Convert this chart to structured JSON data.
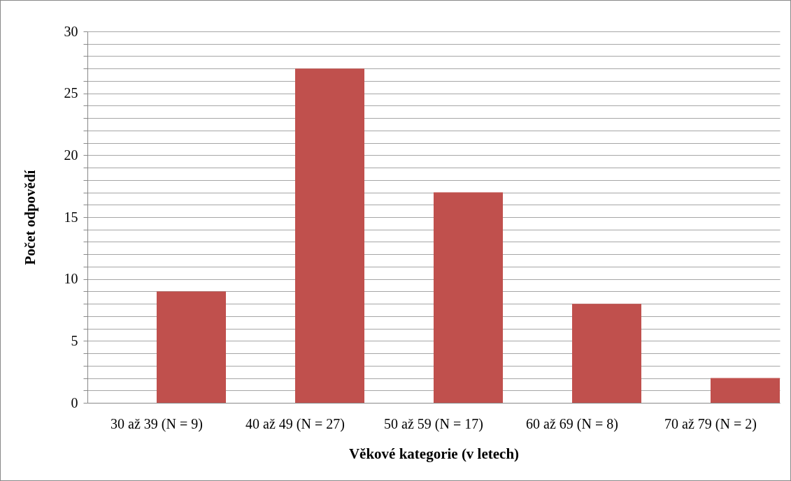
{
  "chart_data": {
    "type": "bar",
    "xlabel": "Věkové kategorie (v letech)",
    "ylabel": "Počet odpovědí",
    "categories": [
      "30 až 39 (N = 9)",
      "40 až 49 (N = 27)",
      "50 až 59 (N = 17)",
      "60 až 69 (N = 8)",
      "70 až 79 (N = 2)"
    ],
    "values": [
      9,
      27,
      17,
      8,
      2
    ],
    "color": "#c0504d",
    "ylim": [
      0,
      30
    ],
    "yticks": [
      0,
      {
        "value": 1,
        "label": null
      },
      {
        "value": 2,
        "label": null
      },
      {
        "value": 3,
        "label": null
      },
      {
        "value": 4,
        "label": null
      },
      5,
      {
        "value": 6,
        "label": null
      },
      {
        "value": 7,
        "label": null
      },
      {
        "value": 8,
        "label": null
      },
      {
        "value": 9,
        "label": null
      },
      10,
      {
        "value": 11,
        "label": null
      },
      {
        "value": 12,
        "label": null
      },
      {
        "value": 13,
        "label": null
      },
      {
        "value": 14,
        "label": null
      },
      15,
      {
        "value": 16,
        "label": null
      },
      {
        "value": 17,
        "label": null
      },
      {
        "value": 18,
        "label": null
      },
      {
        "value": 19,
        "label": null
      },
      20,
      {
        "value": 21,
        "label": null
      },
      {
        "value": 22,
        "label": null
      },
      {
        "value": 23,
        "label": null
      },
      {
        "value": 24,
        "label": null
      },
      25,
      {
        "value": 26,
        "label": null
      },
      {
        "value": 27,
        "label": null
      },
      {
        "value": 28,
        "label": null
      },
      {
        "value": 29,
        "label": null
      },
      30
    ],
    "grid": "y"
  }
}
